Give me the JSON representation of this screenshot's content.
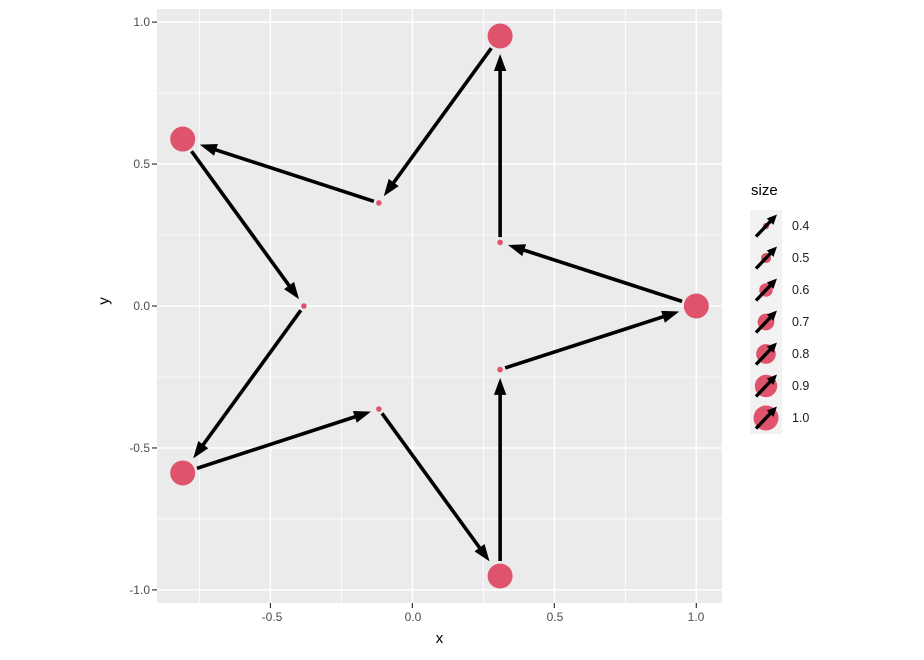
{
  "chart_data": {
    "type": "scatter",
    "title": "",
    "xlabel": "x",
    "ylabel": "y",
    "grid": true,
    "x_range": [
      -0.8995,
      1.0905
    ],
    "y_range": [
      -1.0461,
      1.0461
    ],
    "x_ticks": [
      -0.5,
      0.0,
      0.5,
      1.0
    ],
    "x_tick_labels": [
      "-0.5",
      "0.0",
      "0.5",
      "1.0"
    ],
    "y_ticks": [
      -1.0,
      -0.5,
      0.0,
      0.5,
      1.0
    ],
    "y_tick_labels": [
      "-1.0",
      "-0.5",
      "0.0",
      "0.5",
      "1.0"
    ],
    "x_minor": [
      -0.75,
      -0.25,
      0.25,
      0.75
    ],
    "y_minor": [
      -0.75,
      -0.25,
      0.25,
      0.75
    ],
    "points": [
      {
        "x": 0.309,
        "y": 0.951,
        "size": 1.0
      },
      {
        "x": -0.809,
        "y": 0.588,
        "size": 1.0
      },
      {
        "x": -0.809,
        "y": -0.588,
        "size": 1.0
      },
      {
        "x": 0.309,
        "y": -0.951,
        "size": 1.0
      },
      {
        "x": 1.0,
        "y": 0.0,
        "size": 1.0
      },
      {
        "x": -0.118,
        "y": 0.363,
        "size": 0.382
      },
      {
        "x": -0.382,
        "y": 0.0,
        "size": 0.382
      },
      {
        "x": -0.118,
        "y": -0.363,
        "size": 0.382
      },
      {
        "x": 0.309,
        "y": -0.224,
        "size": 0.382
      },
      {
        "x": 0.309,
        "y": 0.224,
        "size": 0.382
      }
    ],
    "segments": [
      {
        "x": 0.309,
        "y": 0.951,
        "xend": -0.118,
        "yend": 0.363
      },
      {
        "x": -0.118,
        "y": 0.363,
        "xend": -0.809,
        "yend": 0.588
      },
      {
        "x": -0.809,
        "y": 0.588,
        "xend": -0.382,
        "yend": 0.0
      },
      {
        "x": -0.382,
        "y": 0.0,
        "xend": -0.809,
        "yend": -0.588
      },
      {
        "x": -0.809,
        "y": -0.588,
        "xend": -0.118,
        "yend": -0.363
      },
      {
        "x": -0.118,
        "y": -0.363,
        "xend": 0.309,
        "yend": -0.951
      },
      {
        "x": 0.309,
        "y": -0.951,
        "xend": 0.309,
        "yend": -0.224
      },
      {
        "x": 0.309,
        "y": -0.224,
        "xend": 1.0,
        "yend": 0.0
      },
      {
        "x": 1.0,
        "y": 0.0,
        "xend": 0.309,
        "yend": 0.224
      },
      {
        "x": 0.309,
        "y": 0.224,
        "xend": 0.309,
        "yend": 0.951
      }
    ],
    "legend": {
      "title": "size",
      "position": "right",
      "values": [
        0.4,
        0.5,
        0.6,
        0.7,
        0.8,
        0.9,
        1.0
      ],
      "labels": [
        "0.4",
        "0.5",
        "0.6",
        "0.7",
        "0.8",
        "0.9",
        "1.0"
      ]
    },
    "colors": {
      "point": "#DF546C",
      "segment": "#000000",
      "panel_bg": "#EBEBEB",
      "grid": "#FFFFFF",
      "key_bg": "#F2F2F2",
      "tick_mark": "#333333",
      "tick_text": "#4D4D4D",
      "axis_title": "#000000"
    }
  }
}
